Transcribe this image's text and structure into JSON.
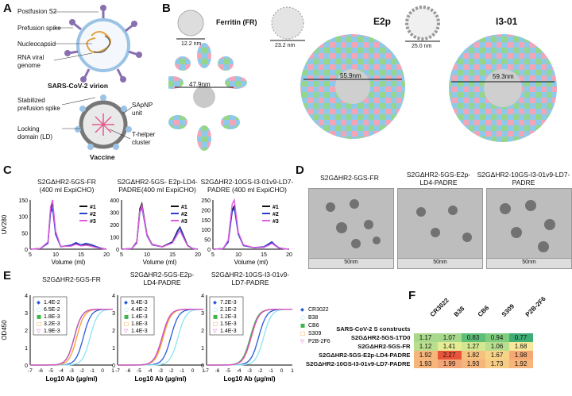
{
  "panels": {
    "a": "A",
    "b": "B",
    "c": "C",
    "d": "D",
    "e": "E",
    "f": "F"
  },
  "panelA": {
    "labels": {
      "postfusion": "Postfusion S2",
      "prefusion": "Prefusion spike",
      "nucleocapsid": "Nucleocapsid",
      "rna": "RNA viral\ngenome",
      "virion": "SARS-CoV-2 virion",
      "stabilized": "Stabilized\nprefusion spike",
      "sapnp": "SApNP\nunit",
      "locking": "Locking\ndomain (LD)",
      "thelper": "T-helper\ncluster",
      "vaccine": "Vaccine"
    },
    "colors": {
      "spike": "#8a6fb0",
      "s2": "#3a86c8",
      "membrane": "#9bc3e6",
      "np": "#777777",
      "helper": "#e15b8e"
    }
  },
  "panelB": {
    "names": {
      "fr": "Ferritin (FR)",
      "e2p": "E2p",
      "i3": "I3-01"
    },
    "small_sizes": {
      "fr": "12.2 nm",
      "e2p": "23.2 nm",
      "i3": "25.0 nm"
    },
    "big_sizes": {
      "fr": "47.9nm",
      "e2p": "55.9nm",
      "i3": "59.3nm"
    },
    "colors": {
      "blue": "#8fc9ea",
      "green": "#96d58a",
      "pink": "#f2a6b5",
      "gray": "#c9c9c9"
    }
  },
  "panelC": {
    "titles": [
      "S2GΔHR2-5GS-FR\n(400 ml ExpiCHO)",
      "S2GΔHR2-5GS- E2p-LD4-\nPADRE(400 ml ExpiCHO)",
      "S2GΔHR2-10GS-I3-01v9-LD7-\nPADRE (400 ml ExpiCHO)"
    ],
    "ylabel": "UV280",
    "xlabel": "Volume (ml)",
    "legend": [
      "#1",
      "#2",
      "#3"
    ]
  },
  "panelD": {
    "titles": [
      "S2GΔHR2-5GS-FR",
      "S2GΔHR2-5GS-E2p-\nLD4-PADRE",
      "S2GΔHR2-10GS-I3-01v9-LD7-\nPADRE"
    ],
    "scale": "50nm"
  },
  "panelE": {
    "titles": [
      "S2GΔHR2-5GS-FR",
      "S2GΔHR2-5GS-E2p-\nLD4-PADRE",
      "S2GΔHR2-10GS-I3-01v9-\nLD7-PADRE"
    ],
    "ylabel": "OD450",
    "xlabel": "Log10 Ab (μg/ml)",
    "ec50": [
      [
        "1.4E-2",
        "6.5E-2",
        "1.8E-3",
        "3.2E-3",
        "1.9E-3"
      ],
      [
        "9.4E-3",
        "4.4E-2",
        "1.4E-3",
        "1.8E-3",
        "1.4E-3"
      ],
      [
        "7.2E-3",
        "2.1E-2",
        "1.2E-3",
        "1.5E-3",
        "1.4E-3"
      ]
    ],
    "antibodies": [
      "CR3022",
      "B38",
      "CB6",
      "S309",
      "P2B-2F6"
    ],
    "colors": [
      "#2a5bd7",
      "#8fe3f0",
      "#3db54a",
      "#f2a12b",
      "#d94bd1"
    ]
  },
  "panelF": {
    "rowheader": "SARS-CoV-2 S constructs",
    "columns": [
      "CR3022",
      "B38",
      "CB6",
      "S309",
      "P2B-2F6"
    ],
    "rows": [
      {
        "name": "S2GΔHR2-5GS-1TD0",
        "values": [
          "1.17",
          "1.07",
          "0.83",
          "0.94",
          "0.77"
        ]
      },
      {
        "name": "S2GΔHR2-5GS-FR",
        "values": [
          "1.12",
          "1.41",
          "1.27",
          "1.06",
          "1.68"
        ]
      },
      {
        "name": "S2GΔHR2-5GS-E2p-LD4-PADRE",
        "values": [
          "1.92",
          "2.27",
          "1.82",
          "1.67",
          "1.98"
        ]
      },
      {
        "name": "S2GΔHR2-10GS-I3-01v9-LD7-PADRE",
        "values": [
          "1.93",
          "1.99",
          "1.93",
          "1.73",
          "1.92"
        ]
      }
    ],
    "colors": [
      [
        "#a7d88b",
        "#a7d88b",
        "#5bbf78",
        "#7fcc7f",
        "#3fae74"
      ],
      [
        "#b9df8e",
        "#e6ec94",
        "#d3e690",
        "#b9df8e",
        "#f7e79a"
      ],
      [
        "#f6b57a",
        "#e8543a",
        "#f6c07e",
        "#f7d387",
        "#f5a874"
      ],
      [
        "#f6b57a",
        "#f4a575",
        "#f6b57a",
        "#f7cd85",
        "#f6b57a"
      ]
    ]
  },
  "chart_data": [
    {
      "type": "line",
      "title": "S2GΔHR2-5GS-FR (400 ml ExpiCHO)",
      "xlabel": "Volume (ml)",
      "ylabel": "UV280",
      "ylim": [
        0,
        150
      ],
      "xlim": [
        5,
        20
      ],
      "series": [
        {
          "name": "#1",
          "x": [
            5,
            7,
            8.5,
            9,
            9.4,
            10,
            11,
            13,
            14,
            15,
            16,
            17,
            18,
            19,
            20
          ],
          "values": [
            0,
            2,
            20,
            120,
            140,
            50,
            8,
            10,
            18,
            12,
            14,
            10,
            6,
            3,
            0
          ]
        },
        {
          "name": "#2",
          "x": [
            5,
            7,
            8.5,
            9,
            9.4,
            10,
            11,
            13,
            14,
            15,
            16,
            17,
            18,
            19,
            20
          ],
          "values": [
            0,
            2,
            18,
            110,
            125,
            45,
            8,
            12,
            20,
            13,
            18,
            14,
            8,
            3,
            0
          ]
        },
        {
          "name": "#3",
          "x": [
            5,
            7,
            8.5,
            9,
            9.4,
            10,
            11,
            13,
            14,
            15,
            16,
            17,
            18,
            19,
            20
          ],
          "values": [
            0,
            2,
            22,
            128,
            150,
            55,
            9,
            9,
            15,
            10,
            12,
            9,
            5,
            2,
            0
          ]
        }
      ]
    },
    {
      "type": "line",
      "title": "S2GΔHR2-5GS- E2p-LD4-PADRE(400 ml ExpiCHO)",
      "xlabel": "Volume (ml)",
      "ylabel": "UV280",
      "ylim": [
        0,
        400
      ],
      "xlim": [
        5,
        20
      ],
      "series": [
        {
          "name": "#1",
          "x": [
            5,
            7,
            8,
            8.6,
            9,
            10,
            11,
            13,
            15,
            16,
            16.5,
            17.2,
            18,
            19,
            20
          ],
          "values": [
            0,
            5,
            60,
            330,
            370,
            120,
            40,
            20,
            60,
            150,
            180,
            110,
            30,
            5,
            0
          ]
        },
        {
          "name": "#2",
          "x": [
            5,
            7,
            8,
            8.6,
            9,
            10,
            11,
            13,
            15,
            16,
            16.5,
            17.2,
            18,
            19,
            20
          ],
          "values": [
            0,
            5,
            50,
            300,
            340,
            110,
            35,
            18,
            55,
            140,
            175,
            100,
            28,
            5,
            0
          ]
        },
        {
          "name": "#3",
          "x": [
            5,
            7,
            8,
            8.6,
            9,
            10,
            11,
            13,
            15,
            16,
            16.5,
            17.2,
            18,
            19,
            20
          ],
          "values": [
            0,
            5,
            55,
            310,
            355,
            115,
            38,
            19,
            50,
            120,
            150,
            90,
            25,
            5,
            0
          ]
        }
      ]
    },
    {
      "type": "line",
      "title": "S2GΔHR2-10GS-I3-01v9-LD7-PADRE (400 ml ExpiCHO)",
      "xlabel": "Volume (ml)",
      "ylabel": "UV280",
      "ylim": [
        0,
        250
      ],
      "xlim": [
        5,
        20
      ],
      "series": [
        {
          "name": "#1",
          "x": [
            5,
            7,
            8,
            8.8,
            9.2,
            10,
            11,
            13,
            15,
            16,
            16.6,
            17.2,
            18,
            19,
            20
          ],
          "values": [
            0,
            3,
            40,
            200,
            220,
            80,
            20,
            8,
            10,
            25,
            35,
            20,
            6,
            2,
            0
          ]
        },
        {
          "name": "#2",
          "x": [
            5,
            7,
            8,
            8.8,
            9.2,
            10,
            11,
            13,
            15,
            16,
            16.6,
            17.2,
            18,
            19,
            20
          ],
          "values": [
            0,
            3,
            35,
            190,
            210,
            75,
            18,
            8,
            12,
            28,
            38,
            22,
            7,
            2,
            0
          ]
        },
        {
          "name": "#3",
          "x": [
            5,
            7,
            8,
            8.8,
            9.2,
            10,
            11,
            13,
            15,
            16,
            16.6,
            17.2,
            18,
            19,
            20
          ],
          "values": [
            0,
            3,
            45,
            230,
            250,
            85,
            22,
            8,
            9,
            20,
            30,
            18,
            5,
            2,
            0
          ]
        }
      ]
    },
    {
      "type": "line",
      "title": "S2GΔHR2-5GS-FR",
      "xlabel": "Log10 Ab (μg/ml)",
      "ylabel": "OD450",
      "ylim": [
        0,
        4
      ],
      "xlim": [
        -7,
        1
      ],
      "series": [
        {
          "name": "CR3022",
          "ec50_log": -1.85
        },
        {
          "name": "B38",
          "ec50_log": -1.19
        },
        {
          "name": "CB6",
          "ec50_log": -2.74
        },
        {
          "name": "S309",
          "ec50_log": -2.49
        },
        {
          "name": "P2B-2F6",
          "ec50_log": -2.72
        }
      ]
    },
    {
      "type": "line",
      "title": "S2GΔHR2-5GS-E2p-LD4-PADRE",
      "xlabel": "Log10 Ab (μg/ml)",
      "ylabel": "OD450",
      "ylim": [
        0,
        4
      ],
      "xlim": [
        -7,
        1
      ],
      "series": [
        {
          "name": "CR3022",
          "ec50_log": -2.03
        },
        {
          "name": "B38",
          "ec50_log": -1.36
        },
        {
          "name": "CB6",
          "ec50_log": -2.85
        },
        {
          "name": "S309",
          "ec50_log": -2.74
        },
        {
          "name": "P2B-2F6",
          "ec50_log": -2.85
        }
      ]
    },
    {
      "type": "line",
      "title": "S2GΔHR2-10GS-I3-01v9-LD7-PADRE",
      "xlabel": "Log10 Ab (μg/ml)",
      "ylabel": "OD450",
      "ylim": [
        0,
        4
      ],
      "xlim": [
        -7,
        1
      ],
      "series": [
        {
          "name": "CR3022",
          "ec50_log": -2.14
        },
        {
          "name": "B38",
          "ec50_log": -1.68
        },
        {
          "name": "CB6",
          "ec50_log": -2.92
        },
        {
          "name": "S309",
          "ec50_log": -2.82
        },
        {
          "name": "P2B-2F6",
          "ec50_log": -2.85
        }
      ]
    }
  ]
}
